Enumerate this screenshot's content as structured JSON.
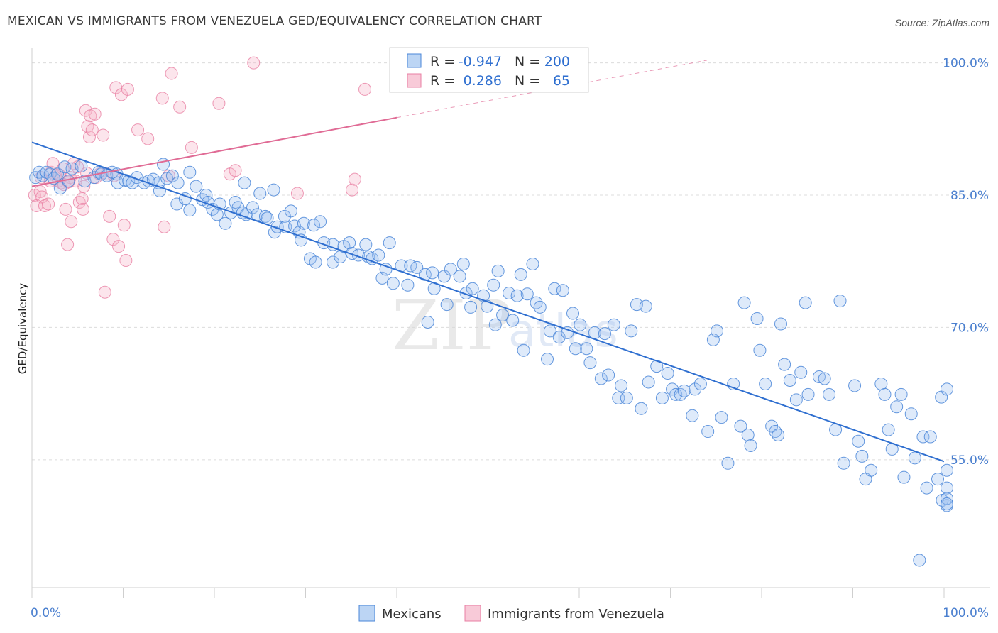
{
  "title": "MEXICAN VS IMMIGRANTS FROM VENEZUELA GED/EQUIVALENCY CORRELATION CHART",
  "source": "Source: ZipAtlas.com",
  "watermark": {
    "zip": "ZIP",
    "atlas": "atlas"
  },
  "colors": {
    "blue": "#4a86d8",
    "blue_fill": "rgba(160,195,240,0.35)",
    "blue_line": "#2f6fd0",
    "pink": "#e87fa3",
    "pink_fill": "rgba(245,180,200,0.35)",
    "pink_line": "#e06b95",
    "grid": "#dcdcdc",
    "axis_label": "#4a7fcf"
  },
  "legend": {
    "row1": {
      "r_label": "R =",
      "r_value": "-0.947",
      "n_label": "N =",
      "n_value": "200"
    },
    "row2": {
      "r_label": "R =",
      "r_value": "0.286",
      "n_label": "N =",
      "n_value": "65"
    }
  },
  "bottom_legend": {
    "series1": "Mexicans",
    "series2": "Immigrants from Venezuela"
  },
  "chart_data": {
    "type": "scatter",
    "title": "MEXICAN VS IMMIGRANTS FROM VENEZUELA GED/EQUIVALENCY CORRELATION CHART",
    "ylabel": "GED/Equivalency",
    "xlabel": "",
    "x_tick_labels": [
      "0.0%",
      "100.0%"
    ],
    "y_tick_labels": [
      "55.0%",
      "70.0%",
      "85.0%",
      "100.0%"
    ],
    "y_ticks": [
      55,
      70,
      85,
      100
    ],
    "xlim": [
      0,
      100
    ],
    "ylim": [
      40.5,
      101.5
    ],
    "grid": "horizontal dashed",
    "legend_position": "top-center",
    "series": [
      {
        "name": "Mexicans",
        "color": "#4a86d8",
        "trend": {
          "x": [
            0,
            100
          ],
          "y": [
            91.0,
            54.8
          ]
        },
        "points": [
          [
            0.4,
            87.0
          ],
          [
            0.8,
            87.6
          ],
          [
            1.2,
            87.2
          ],
          [
            1.6,
            87.6
          ],
          [
            2.0,
            87.4
          ],
          [
            2.4,
            86.9
          ],
          [
            2.8,
            87.4
          ],
          [
            3.1,
            85.8
          ],
          [
            3.6,
            88.2
          ],
          [
            4.0,
            86.6
          ],
          [
            4.4,
            88.0
          ],
          [
            5.4,
            88.3
          ],
          [
            5.8,
            86.6
          ],
          [
            6.8,
            87.0
          ],
          [
            7.3,
            87.6
          ],
          [
            7.6,
            87.4
          ],
          [
            8.2,
            87.2
          ],
          [
            8.8,
            87.6
          ],
          [
            9.3,
            87.4
          ],
          [
            9.4,
            86.4
          ],
          [
            10.2,
            86.7
          ],
          [
            10.6,
            86.6
          ],
          [
            11.0,
            86.4
          ],
          [
            11.5,
            87.0
          ],
          [
            12.3,
            86.4
          ],
          [
            12.8,
            86.6
          ],
          [
            13.3,
            86.8
          ],
          [
            13.9,
            86.4
          ],
          [
            14.0,
            85.5
          ],
          [
            14.4,
            88.5
          ],
          [
            14.8,
            86.9
          ],
          [
            15.4,
            87.2
          ],
          [
            15.9,
            84.0
          ],
          [
            16.0,
            86.4
          ],
          [
            16.8,
            84.6
          ],
          [
            17.3,
            83.3
          ],
          [
            17.3,
            87.6
          ],
          [
            18.0,
            86.0
          ],
          [
            18.7,
            84.5
          ],
          [
            19.1,
            85.0
          ],
          [
            19.3,
            84.2
          ],
          [
            19.8,
            83.4
          ],
          [
            20.3,
            82.8
          ],
          [
            20.6,
            84.0
          ],
          [
            21.2,
            81.8
          ],
          [
            21.8,
            83.0
          ],
          [
            22.3,
            84.2
          ],
          [
            22.6,
            83.6
          ],
          [
            23.1,
            83.0
          ],
          [
            23.3,
            86.4
          ],
          [
            23.5,
            82.8
          ],
          [
            24.2,
            83.6
          ],
          [
            24.7,
            82.8
          ],
          [
            25.0,
            85.2
          ],
          [
            25.6,
            82.6
          ],
          [
            25.8,
            82.4
          ],
          [
            26.5,
            85.6
          ],
          [
            26.6,
            80.8
          ],
          [
            26.9,
            81.4
          ],
          [
            27.7,
            82.6
          ],
          [
            27.8,
            81.4
          ],
          [
            28.4,
            83.2
          ],
          [
            28.8,
            81.5
          ],
          [
            29.3,
            80.8
          ],
          [
            29.5,
            79.9
          ],
          [
            29.8,
            81.8
          ],
          [
            30.5,
            77.8
          ],
          [
            30.9,
            81.6
          ],
          [
            31.1,
            77.4
          ],
          [
            31.6,
            82.0
          ],
          [
            32.0,
            79.6
          ],
          [
            33.0,
            79.4
          ],
          [
            33.0,
            77.4
          ],
          [
            33.8,
            78.0
          ],
          [
            34.2,
            79.2
          ],
          [
            34.8,
            79.6
          ],
          [
            35.1,
            78.4
          ],
          [
            35.8,
            78.2
          ],
          [
            36.6,
            79.4
          ],
          [
            36.9,
            78.0
          ],
          [
            37.3,
            77.8
          ],
          [
            38.0,
            78.2
          ],
          [
            38.4,
            75.6
          ],
          [
            38.8,
            76.6
          ],
          [
            39.2,
            79.6
          ],
          [
            39.6,
            75.0
          ],
          [
            40.5,
            77.0
          ],
          [
            41.2,
            74.8
          ],
          [
            41.5,
            77.0
          ],
          [
            42.2,
            76.8
          ],
          [
            43.1,
            76.0
          ],
          [
            43.4,
            70.6
          ],
          [
            43.9,
            76.2
          ],
          [
            44.1,
            74.4
          ],
          [
            45.2,
            75.8
          ],
          [
            45.5,
            72.6
          ],
          [
            45.9,
            76.6
          ],
          [
            46.9,
            75.8
          ],
          [
            47.3,
            77.2
          ],
          [
            47.6,
            73.9
          ],
          [
            48.1,
            72.3
          ],
          [
            48.3,
            74.4
          ],
          [
            49.5,
            73.6
          ],
          [
            49.9,
            72.4
          ],
          [
            50.6,
            74.8
          ],
          [
            50.8,
            70.3
          ],
          [
            51.1,
            76.4
          ],
          [
            51.6,
            71.4
          ],
          [
            52.3,
            73.9
          ],
          [
            52.7,
            70.8
          ],
          [
            53.2,
            73.6
          ],
          [
            53.6,
            76.0
          ],
          [
            53.9,
            67.4
          ],
          [
            54.3,
            73.8
          ],
          [
            54.9,
            77.2
          ],
          [
            55.3,
            72.8
          ],
          [
            55.7,
            72.3
          ],
          [
            56.5,
            66.4
          ],
          [
            56.8,
            69.6
          ],
          [
            57.3,
            74.4
          ],
          [
            57.8,
            68.9
          ],
          [
            58.2,
            74.2
          ],
          [
            58.7,
            69.4
          ],
          [
            59.3,
            71.6
          ],
          [
            59.6,
            67.6
          ],
          [
            60.1,
            70.3
          ],
          [
            60.8,
            67.6
          ],
          [
            61.2,
            66.0
          ],
          [
            61.7,
            69.4
          ],
          [
            62.4,
            64.2
          ],
          [
            62.8,
            69.3
          ],
          [
            63.2,
            64.6
          ],
          [
            63.8,
            70.3
          ],
          [
            64.3,
            62.0
          ],
          [
            64.6,
            63.4
          ],
          [
            65.2,
            62.0
          ],
          [
            65.7,
            69.6
          ],
          [
            66.3,
            72.6
          ],
          [
            66.8,
            60.8
          ],
          [
            67.3,
            72.4
          ],
          [
            67.6,
            63.8
          ],
          [
            68.5,
            65.6
          ],
          [
            69.1,
            62.0
          ],
          [
            69.7,
            64.8
          ],
          [
            70.2,
            63.0
          ],
          [
            70.6,
            62.4
          ],
          [
            71.1,
            62.4
          ],
          [
            71.5,
            62.8
          ],
          [
            72.4,
            60.0
          ],
          [
            72.7,
            63.0
          ],
          [
            73.3,
            63.6
          ],
          [
            74.1,
            58.2
          ],
          [
            74.7,
            68.6
          ],
          [
            75.1,
            69.6
          ],
          [
            75.6,
            59.8
          ],
          [
            76.3,
            54.6
          ],
          [
            76.9,
            63.6
          ],
          [
            77.7,
            58.8
          ],
          [
            78.1,
            72.8
          ],
          [
            78.5,
            57.8
          ],
          [
            78.8,
            56.6
          ],
          [
            79.5,
            71.0
          ],
          [
            79.8,
            67.4
          ],
          [
            80.4,
            63.6
          ],
          [
            81.1,
            58.8
          ],
          [
            81.5,
            58.2
          ],
          [
            81.8,
            57.8
          ],
          [
            82.1,
            70.4
          ],
          [
            82.5,
            65.8
          ],
          [
            83.1,
            64.0
          ],
          [
            83.8,
            61.8
          ],
          [
            84.3,
            64.9
          ],
          [
            84.8,
            72.8
          ],
          [
            85.1,
            62.4
          ],
          [
            86.3,
            64.4
          ],
          [
            86.9,
            64.2
          ],
          [
            87.4,
            62.4
          ],
          [
            88.1,
            58.4
          ],
          [
            88.6,
            73.0
          ],
          [
            89.0,
            54.6
          ],
          [
            90.2,
            63.4
          ],
          [
            90.6,
            57.1
          ],
          [
            91.0,
            55.4
          ],
          [
            91.4,
            52.8
          ],
          [
            92.0,
            53.8
          ],
          [
            93.1,
            63.6
          ],
          [
            93.5,
            62.4
          ],
          [
            93.9,
            58.4
          ],
          [
            94.3,
            56.2
          ],
          [
            94.8,
            61.0
          ],
          [
            95.3,
            62.4
          ],
          [
            95.6,
            53.0
          ],
          [
            96.4,
            60.2
          ],
          [
            96.8,
            55.2
          ],
          [
            97.3,
            43.6
          ],
          [
            97.7,
            57.6
          ],
          [
            98.1,
            51.8
          ],
          [
            98.5,
            57.6
          ],
          [
            99.3,
            52.8
          ],
          [
            99.7,
            62.1
          ],
          [
            99.8,
            50.4
          ],
          [
            100.3,
            49.8
          ],
          [
            100.9,
            51.8
          ],
          [
            101.4,
            63.0
          ],
          [
            101.8,
            53.8
          ],
          [
            102.4,
            50.6
          ],
          [
            103.3,
            50.0
          ]
        ]
      },
      {
        "name": "Immigrants from Venezuela",
        "color": "#e87fa3",
        "trend": {
          "x": [
            0,
            40
          ],
          "y": [
            86.0,
            93.8
          ]
        },
        "trend_dashed": {
          "x": [
            40,
            74
          ],
          "y": [
            93.8,
            100.3
          ]
        },
        "points": [
          [
            0.3,
            85.0
          ],
          [
            0.5,
            83.8
          ],
          [
            0.9,
            85.4
          ],
          [
            1.1,
            84.8
          ],
          [
            1.4,
            83.8
          ],
          [
            1.8,
            84.0
          ],
          [
            2.1,
            87.6
          ],
          [
            2.3,
            88.6
          ],
          [
            2.6,
            87.2
          ],
          [
            2.9,
            86.6
          ],
          [
            3.2,
            86.4
          ],
          [
            3.4,
            88.0
          ],
          [
            3.5,
            86.2
          ],
          [
            3.7,
            83.4
          ],
          [
            3.9,
            79.4
          ],
          [
            4.2,
            87.0
          ],
          [
            4.3,
            82.0
          ],
          [
            4.6,
            88.6
          ],
          [
            4.8,
            86.6
          ],
          [
            5.0,
            88.2
          ],
          [
            5.2,
            84.2
          ],
          [
            5.5,
            84.6
          ],
          [
            5.6,
            83.4
          ],
          [
            5.7,
            86.0
          ],
          [
            5.9,
            94.6
          ],
          [
            6.1,
            92.8
          ],
          [
            6.3,
            91.6
          ],
          [
            6.4,
            94.0
          ],
          [
            6.6,
            92.4
          ],
          [
            6.9,
            94.2
          ],
          [
            7.4,
            87.4
          ],
          [
            7.8,
            91.8
          ],
          [
            8.2,
            87.4
          ],
          [
            8.5,
            82.6
          ],
          [
            8.9,
            80.0
          ],
          [
            9.2,
            97.2
          ],
          [
            9.5,
            79.2
          ],
          [
            9.8,
            96.4
          ],
          [
            10.1,
            81.6
          ],
          [
            10.3,
            77.6
          ],
          [
            10.5,
            97.0
          ],
          [
            11.6,
            92.4
          ],
          [
            12.7,
            91.4
          ],
          [
            14.3,
            96.0
          ],
          [
            14.5,
            81.4
          ],
          [
            15.0,
            87.2
          ],
          [
            15.3,
            98.8
          ],
          [
            16.2,
            95.0
          ],
          [
            17.5,
            90.4
          ],
          [
            20.5,
            95.4
          ],
          [
            21.7,
            87.4
          ],
          [
            22.3,
            87.8
          ],
          [
            24.3,
            100.0
          ],
          [
            29.1,
            85.2
          ],
          [
            35.1,
            85.6
          ],
          [
            35.4,
            86.8
          ],
          [
            36.5,
            97.0
          ],
          [
            8.0,
            74.0
          ],
          [
            1.0,
            87.0
          ],
          [
            2.0,
            86.6
          ],
          [
            3.0,
            87.3
          ],
          [
            6.0,
            87.5
          ],
          [
            7.0,
            87.0
          ],
          [
            4.0,
            86.5
          ],
          [
            9.0,
            87.2
          ]
        ]
      }
    ]
  }
}
